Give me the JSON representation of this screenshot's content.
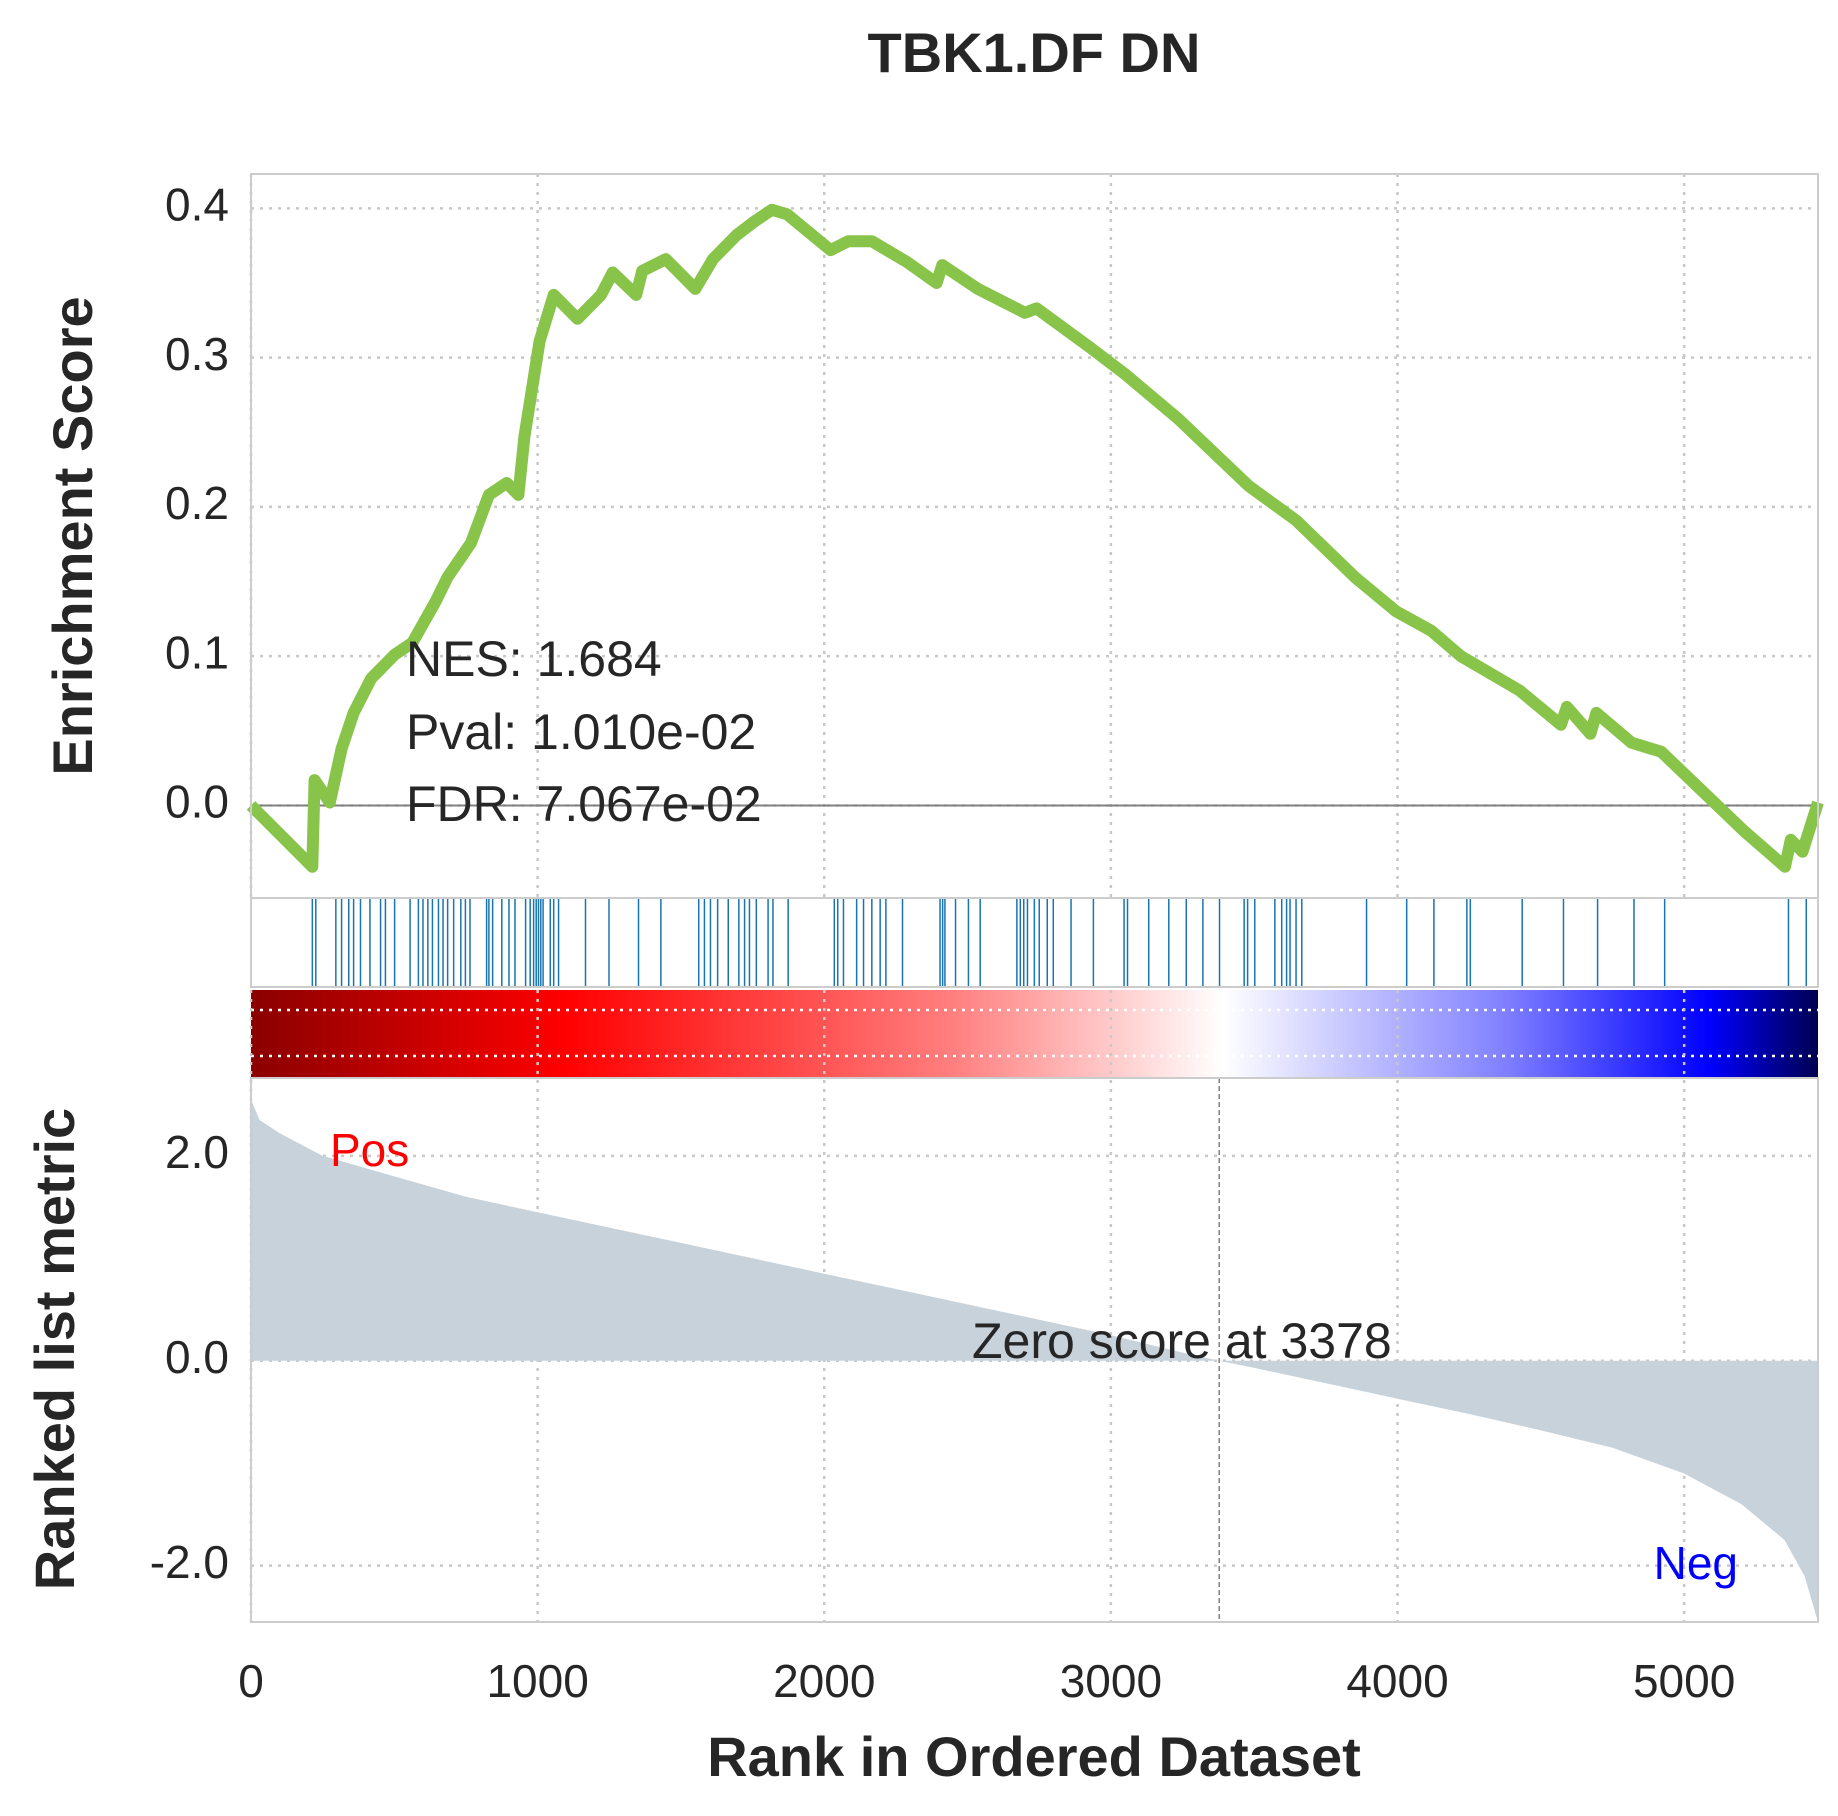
{
  "chart_data": [
    {
      "type": "line",
      "title": "TBK1.DF DN",
      "ylabel": "Enrichment Score",
      "color": "#88c34a",
      "x": [
        0,
        214,
        222,
        275,
        316,
        358,
        419,
        501,
        563,
        645,
        686,
        768,
        830,
        892,
        933,
        954,
        1007,
        1056,
        1139,
        1221,
        1262,
        1344,
        1365,
        1447,
        1550,
        1612,
        1694,
        1755,
        1817,
        1870,
        2022,
        2084,
        2166,
        2289,
        2392,
        2412,
        2536,
        2700,
        2741,
        2926,
        3049,
        3235,
        3481,
        3646,
        3851,
        3995,
        4118,
        4221,
        4426,
        4570,
        4591,
        4673,
        4694,
        4817,
        4920,
        5208,
        5352,
        5372,
        5413,
        5467
      ],
      "values": [
        0,
        -0.041,
        0.017,
        0.002,
        0.038,
        0.062,
        0.085,
        0.101,
        0.109,
        0.137,
        0.153,
        0.176,
        0.208,
        0.216,
        0.208,
        0.247,
        0.311,
        0.342,
        0.326,
        0.342,
        0.357,
        0.342,
        0.358,
        0.366,
        0.346,
        0.366,
        0.382,
        0.391,
        0.399,
        0.396,
        0.372,
        0.378,
        0.378,
        0.364,
        0.35,
        0.362,
        0.346,
        0.33,
        0.333,
        0.307,
        0.289,
        0.259,
        0.214,
        0.191,
        0.153,
        0.13,
        0.117,
        0.1,
        0.077,
        0.054,
        0.066,
        0.048,
        0.062,
        0.042,
        0.036,
        -0.017,
        -0.041,
        -0.023,
        -0.031,
        0.002
      ],
      "xlim": [
        0,
        5467
      ],
      "ylim": [
        -0.062,
        0.423
      ],
      "yticks": [
        {
          "value": 0,
          "label": "0.0"
        },
        0.1,
        0.2,
        0.3,
        0.4
      ],
      "grid": true,
      "annotations": [
        "NES: 1.684",
        "Pval: 1.010e-02",
        "FDR: 7.067e-02"
      ]
    },
    {
      "type": "rug",
      "color": "#1a74b0",
      "xlim": [
        0,
        5467
      ],
      "x": [
        214,
        226,
        296,
        316,
        341,
        358,
        382,
        415,
        452,
        469,
        501,
        555,
        584,
        600,
        617,
        633,
        654,
        670,
        686,
        707,
        732,
        748,
        764,
        822,
        830,
        843,
        875,
        900,
        921,
        958,
        974,
        986,
        995,
        1003,
        1011,
        1019,
        1044,
        1056,
        1073,
        1167,
        1249,
        1352,
        1430,
        1562,
        1582,
        1603,
        1628,
        1665,
        1702,
        1722,
        1739,
        1763,
        1804,
        1821,
        1874,
        2035,
        2047,
        2067,
        2113,
        2137,
        2166,
        2195,
        2215,
        2273,
        2404,
        2413,
        2421,
        2458,
        2503,
        2544,
        2672,
        2684,
        2696,
        2709,
        2733,
        2750,
        2778,
        2799,
        2861,
        2939,
        3046,
        3058,
        3132,
        3202,
        3263,
        3321,
        3379,
        3465,
        3477,
        3502,
        3572,
        3596,
        3613,
        3625,
        3646,
        3666,
        3892,
        4032,
        4127,
        4242,
        4254,
        4435,
        4579,
        4698,
        4825,
        4932,
        5364,
        5426
      ]
    },
    {
      "type": "area",
      "ylabel": "Ranked list metric",
      "xlabel": "Rank in Ordered Dataset",
      "color": "#c8d2db",
      "x": [
        0,
        30,
        100,
        250,
        500,
        750,
        1000,
        1250,
        1500,
        1750,
        2000,
        2250,
        2500,
        2750,
        3000,
        3250,
        3378,
        3500,
        3750,
        4000,
        4250,
        4500,
        4750,
        5000,
        5200,
        5350,
        5420,
        5467
      ],
      "values": [
        2.55,
        2.35,
        2.22,
        2.0,
        1.8,
        1.6,
        1.45,
        1.3,
        1.15,
        1.0,
        0.85,
        0.7,
        0.55,
        0.4,
        0.25,
        0.08,
        0,
        -0.07,
        -0.22,
        -0.37,
        -0.52,
        -0.68,
        -0.85,
        -1.1,
        -1.4,
        -1.75,
        -2.1,
        -2.55
      ],
      "xlim": [
        0,
        5467
      ],
      "ylim": [
        -2.55,
        2.76
      ],
      "xticks": [
        0,
        1000,
        2000,
        3000,
        4000,
        5000
      ],
      "yticks": [
        {
          "value": -2,
          "label": "-2.0"
        },
        {
          "value": 0,
          "label": "0.0"
        },
        {
          "value": 2,
          "label": "2.0"
        }
      ],
      "grid": true,
      "zero_score_rank": 3378,
      "annotations": [
        {
          "text": "Zero score at 3378"
        },
        {
          "text": "Pos",
          "color": "red"
        },
        {
          "text": "Neg",
          "color": "blue"
        }
      ]
    }
  ]
}
